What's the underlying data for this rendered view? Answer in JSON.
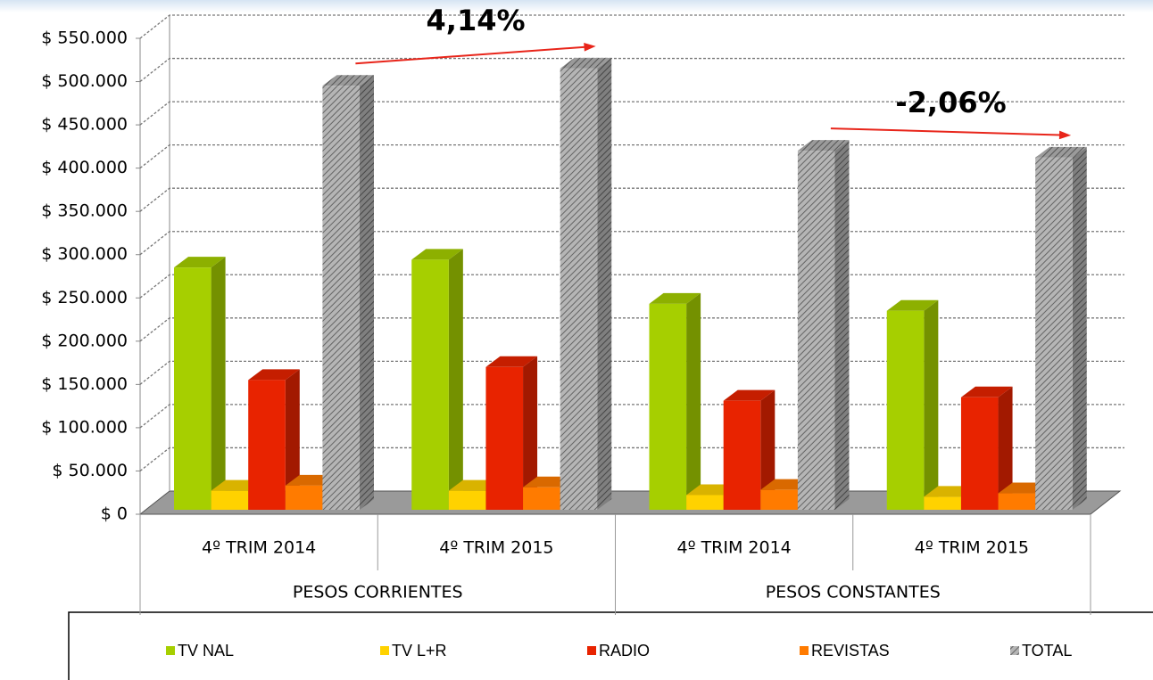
{
  "chart_data": {
    "type": "bar3d",
    "category_groups": [
      {
        "name": "PESOS CORRIENTES",
        "categories": [
          "4º TRIM 2014",
          "4º TRIM 2015"
        ]
      },
      {
        "name": "PESOS CONSTANTES",
        "categories": [
          "4º TRIM 2014",
          "4º TRIM 2015"
        ]
      }
    ],
    "series": [
      {
        "name": "TV NAL",
        "color": "#a6cf00",
        "values": [
          280000,
          289000,
          238000,
          230000
        ]
      },
      {
        "name": "TV L+R",
        "color": "#ffd200",
        "values": [
          22000,
          22000,
          17000,
          15000
        ]
      },
      {
        "name": "RADIO",
        "color": "#e82300",
        "values": [
          150000,
          165000,
          126000,
          130000
        ]
      },
      {
        "name": "REVISTAS",
        "color": "#ff7b00",
        "values": [
          28000,
          26000,
          23000,
          19000
        ]
      },
      {
        "name": "TOTAL",
        "color": "#b5b5b5",
        "pattern": "diagonal",
        "values": [
          490000,
          510000,
          415000,
          407000
        ]
      }
    ],
    "ylim": [
      0,
      550000
    ],
    "yticks": [
      {
        "value": 0,
        "label": "$ 0"
      },
      {
        "value": 50000,
        "label": "$ 50.000"
      },
      {
        "value": 100000,
        "label": "$ 100.000"
      },
      {
        "value": 150000,
        "label": "$ 150.000"
      },
      {
        "value": 200000,
        "label": "$ 200.000"
      },
      {
        "value": 250000,
        "label": "$ 250.000"
      },
      {
        "value": 300000,
        "label": "$ 300.000"
      },
      {
        "value": 350000,
        "label": "$ 350.000"
      },
      {
        "value": 400000,
        "label": "$ 400.000"
      },
      {
        "value": 450000,
        "label": "$ 450.000"
      },
      {
        "value": 500000,
        "label": "$ 500.000"
      },
      {
        "value": 550000,
        "label": "$ 550.000"
      }
    ],
    "grid": true,
    "legend": "bottom",
    "annotations": [
      {
        "text": "4,14%",
        "color": "#e8251a"
      },
      {
        "text": "-2,06%",
        "color": "#e8251a"
      }
    ]
  }
}
